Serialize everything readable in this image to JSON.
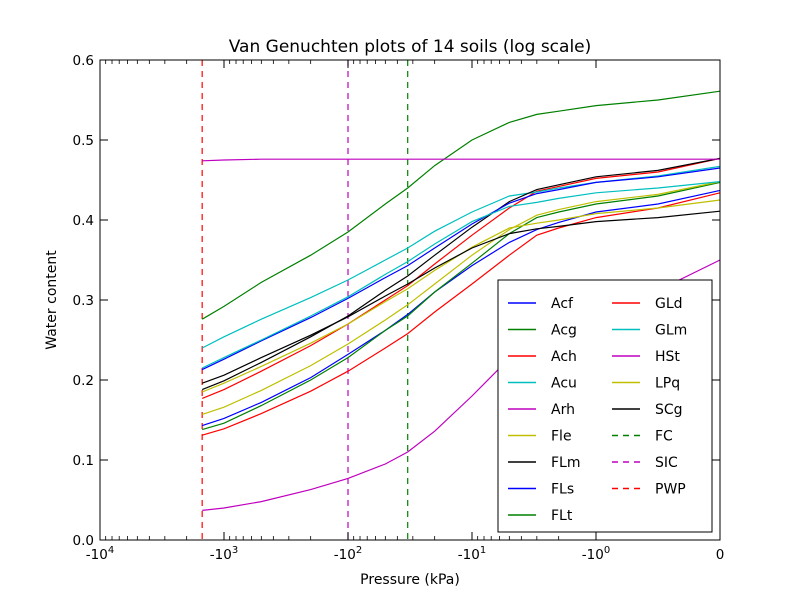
{
  "chart_data": {
    "type": "line",
    "title": "Van Genuchten plots of 14 soils (log scale)",
    "xlabel": "Pressure (kPa)",
    "ylabel": "Water content",
    "x_scale": "symlog",
    "xlim": [
      -10000,
      0
    ],
    "ylim": [
      0,
      0.6
    ],
    "xtick_labels": [
      "-10^4",
      "-10^3",
      "-10^2",
      "-10^1",
      "-10^0",
      "0"
    ],
    "ytick_labels": [
      "0.0",
      "0.1",
      "0.2",
      "0.3",
      "0.4",
      "0.5",
      "0.6"
    ],
    "grid": false,
    "legend_position": "lower-right",
    "x": [
      -1500,
      -1000,
      -500,
      -200,
      -100,
      -50,
      -33,
      -20,
      -10,
      -5,
      -3,
      -2,
      -1,
      -0.5,
      0
    ],
    "series": [
      {
        "name": "Acf",
        "color": "#0000ff",
        "dash": "solid",
        "values": [
          0.143,
          0.152,
          0.172,
          0.203,
          0.232,
          0.262,
          0.282,
          0.31,
          0.343,
          0.372,
          0.388,
          0.397,
          0.41,
          0.42,
          0.437
        ]
      },
      {
        "name": "Acg",
        "color": "#008000",
        "dash": "solid",
        "values": [
          0.138,
          0.146,
          0.168,
          0.2,
          0.228,
          0.262,
          0.28,
          0.31,
          0.346,
          0.383,
          0.403,
          0.41,
          0.42,
          0.43,
          0.447
        ]
      },
      {
        "name": "Ach",
        "color": "#ff0000",
        "dash": "solid",
        "values": [
          0.177,
          0.188,
          0.211,
          0.243,
          0.27,
          0.3,
          0.318,
          0.345,
          0.381,
          0.415,
          0.436,
          0.442,
          0.452,
          0.46,
          0.477
        ]
      },
      {
        "name": "Acu",
        "color": "#00bfbf",
        "dash": "solid",
        "values": [
          0.24,
          0.254,
          0.276,
          0.303,
          0.325,
          0.35,
          0.365,
          0.386,
          0.41,
          0.43,
          0.435,
          0.44,
          0.447,
          0.455,
          0.467
        ]
      },
      {
        "name": "Arh",
        "color": "#bf00bf",
        "dash": "solid",
        "values": [
          0.037,
          0.04,
          0.048,
          0.063,
          0.077,
          0.095,
          0.11,
          0.136,
          0.18,
          0.227,
          0.257,
          0.268,
          0.29,
          0.312,
          0.35
        ]
      },
      {
        "name": "Fle",
        "color": "#bfbf00",
        "dash": "solid",
        "values": [
          0.157,
          0.166,
          0.187,
          0.218,
          0.245,
          0.275,
          0.294,
          0.32,
          0.356,
          0.388,
          0.406,
          0.413,
          0.423,
          0.432,
          0.448
        ]
      },
      {
        "name": "FLm",
        "color": "#000000",
        "dash": "solid",
        "values": [
          0.188,
          0.199,
          0.222,
          0.254,
          0.28,
          0.312,
          0.33,
          0.356,
          0.391,
          0.423,
          0.438,
          0.444,
          0.454,
          0.462,
          0.477
        ]
      },
      {
        "name": "FLs",
        "color": "#0000ff",
        "dash": "solid",
        "values": [
          0.213,
          0.226,
          0.249,
          0.278,
          0.302,
          0.328,
          0.343,
          0.365,
          0.395,
          0.421,
          0.433,
          0.438,
          0.447,
          0.454,
          0.465
        ]
      },
      {
        "name": "FLt",
        "color": "#008000",
        "dash": "solid",
        "values": [
          0.276,
          0.292,
          0.322,
          0.356,
          0.385,
          0.42,
          0.44,
          0.468,
          0.5,
          0.522,
          0.532,
          0.536,
          0.543,
          0.55,
          0.561
        ]
      },
      {
        "name": "GLd",
        "color": "#ff0000",
        "dash": "solid",
        "values": [
          0.131,
          0.139,
          0.158,
          0.186,
          0.211,
          0.24,
          0.258,
          0.285,
          0.32,
          0.356,
          0.381,
          0.39,
          0.403,
          0.415,
          0.434
        ]
      },
      {
        "name": "GLm",
        "color": "#00bfbf",
        "dash": "solid",
        "values": [
          0.215,
          0.228,
          0.25,
          0.28,
          0.304,
          0.332,
          0.348,
          0.37,
          0.398,
          0.417,
          0.422,
          0.427,
          0.434,
          0.44,
          0.448
        ]
      },
      {
        "name": "HSt",
        "color": "#bf00bf",
        "dash": "solid",
        "values": [
          0.474,
          0.475,
          0.476,
          0.476,
          0.476,
          0.476,
          0.476,
          0.476,
          0.476,
          0.476,
          0.476,
          0.476,
          0.476,
          0.476,
          0.476
        ]
      },
      {
        "name": "LPq",
        "color": "#bfbf00",
        "dash": "solid",
        "values": [
          0.185,
          0.196,
          0.217,
          0.246,
          0.27,
          0.298,
          0.314,
          0.337,
          0.366,
          0.39,
          0.396,
          0.4,
          0.408,
          0.415,
          0.425
        ]
      },
      {
        "name": "SCg",
        "color": "#000000",
        "dash": "solid",
        "values": [
          0.196,
          0.206,
          0.228,
          0.256,
          0.279,
          0.305,
          0.32,
          0.34,
          0.365,
          0.383,
          0.389,
          0.392,
          0.398,
          0.403,
          0.411
        ]
      }
    ],
    "vlines": [
      {
        "name": "FC",
        "color": "#008000",
        "dash": "dashed",
        "x": -33
      },
      {
        "name": "SIC",
        "color": "#bf00bf",
        "dash": "dashed",
        "x": -100
      },
      {
        "name": "PWP",
        "color": "#ff0000",
        "dash": "dashed",
        "x": -1500
      }
    ]
  }
}
